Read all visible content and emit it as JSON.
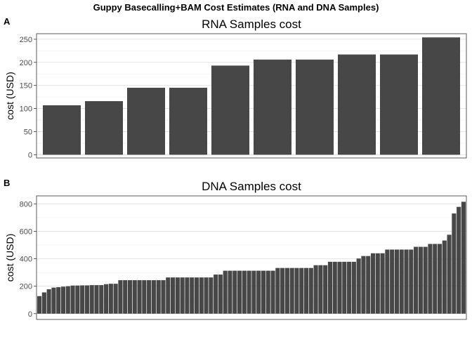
{
  "figure": {
    "title": "Guppy Basecalling+BAM Cost Estimates (RNA and DNA Samples)"
  },
  "colors": {
    "bar": "#474747",
    "grid_major": "#e3e3e3",
    "grid_minor": "#f1f1f1",
    "border": "#333333",
    "tick": "#4d4d4d"
  },
  "chart_data": [
    {
      "type": "bar",
      "tag": "A",
      "title": "RNA Samples cost",
      "xlabel": "",
      "ylabel": "cost (USD)",
      "ylim": [
        -7,
        262
      ],
      "yticks": [
        0,
        50,
        100,
        150,
        200,
        250
      ],
      "yticklabels": [
        "0",
        "50",
        "100",
        "150",
        "200",
        "250"
      ],
      "grid": true,
      "values": [
        107,
        116,
        145,
        145,
        193,
        206,
        206,
        217,
        217,
        254
      ]
    },
    {
      "type": "bar",
      "tag": "B",
      "title": "DNA Samples cost",
      "xlabel": "",
      "ylabel": "cost (USD)",
      "ylim": [
        -42,
        858
      ],
      "yticks": [
        0,
        200,
        400,
        600,
        800
      ],
      "yticklabels": [
        "0",
        "200",
        "400",
        "600",
        "800"
      ],
      "grid": true,
      "values": [
        128,
        155,
        178,
        190,
        193,
        197,
        200,
        205,
        205,
        206,
        206,
        208,
        208,
        208,
        215,
        218,
        218,
        244,
        244,
        244,
        244,
        244,
        244,
        244,
        244,
        244,
        244,
        264,
        264,
        264,
        264,
        264,
        264,
        264,
        264,
        264,
        264,
        285,
        285,
        313,
        313,
        313,
        313,
        313,
        313,
        313,
        313,
        313,
        313,
        313,
        333,
        333,
        333,
        333,
        333,
        333,
        333,
        333,
        353,
        353,
        353,
        378,
        378,
        378,
        378,
        378,
        378,
        402,
        420,
        420,
        440,
        440,
        440,
        467,
        467,
        467,
        467,
        467,
        467,
        487,
        487,
        487,
        508,
        508,
        508,
        533,
        575,
        730,
        778,
        815
      ]
    }
  ]
}
